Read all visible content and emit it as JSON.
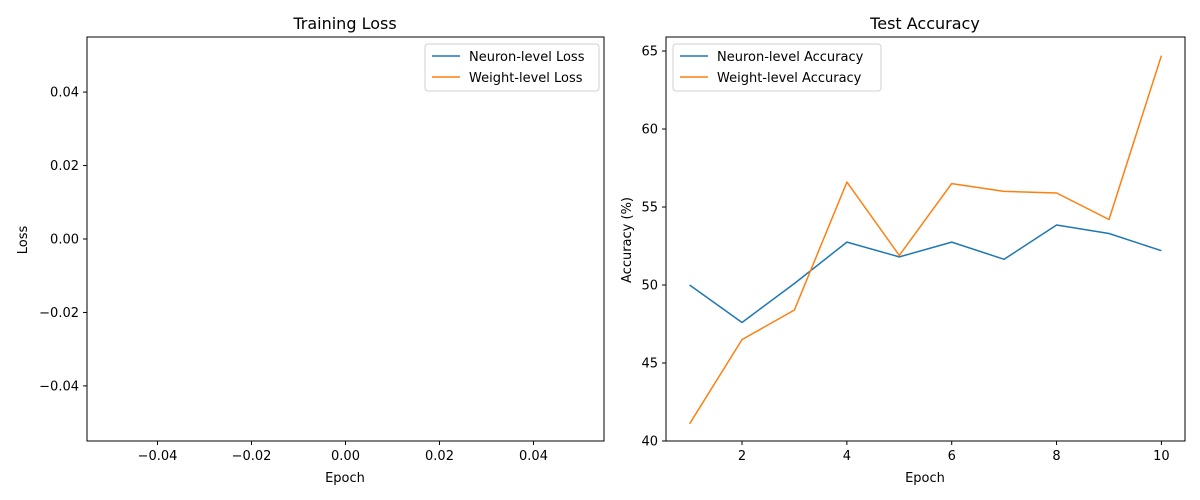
{
  "chart_data": [
    {
      "type": "line",
      "title": "Training Loss",
      "xlabel": "Epoch",
      "ylabel": "Loss",
      "xlim": [
        -0.055,
        0.055
      ],
      "ylim": [
        -0.055,
        0.055
      ],
      "xticks": [
        -0.04,
        -0.02,
        0.0,
        0.02,
        0.04
      ],
      "xtick_labels": [
        "−0.04",
        "−0.02",
        "0.00",
        "0.02",
        "0.04"
      ],
      "yticks": [
        -0.04,
        -0.02,
        0.0,
        0.02,
        0.04
      ],
      "ytick_labels": [
        "−0.04",
        "−0.02",
        "0.00",
        "0.02",
        "0.04"
      ],
      "legend_position": "top-right",
      "grid": false,
      "series": [
        {
          "name": "Neuron-level Loss",
          "color": "#1f77b4",
          "x": [],
          "values": []
        },
        {
          "name": "Weight-level Loss",
          "color": "#ff7f0e",
          "x": [],
          "values": []
        }
      ]
    },
    {
      "type": "line",
      "title": "Test Accuracy",
      "xlabel": "Epoch",
      "ylabel": "Accuracy (%)",
      "xlim": [
        0.55,
        10.45
      ],
      "ylim": [
        40.0,
        65.9
      ],
      "xticks": [
        2,
        4,
        6,
        8,
        10
      ],
      "xtick_labels": [
        "2",
        "4",
        "6",
        "8",
        "10"
      ],
      "yticks": [
        40,
        45,
        50,
        55,
        60,
        65
      ],
      "ytick_labels": [
        "40",
        "45",
        "50",
        "55",
        "60",
        "65"
      ],
      "legend_position": "top-left",
      "grid": false,
      "series": [
        {
          "name": "Neuron-level Accuracy",
          "color": "#1f77b4",
          "x": [
            1,
            2,
            3,
            4,
            5,
            6,
            7,
            8,
            9,
            10
          ],
          "values": [
            50.0,
            47.6,
            50.1,
            52.75,
            51.8,
            52.75,
            51.65,
            53.85,
            53.3,
            52.2
          ]
        },
        {
          "name": "Weight-level Accuracy",
          "color": "#ff7f0e",
          "x": [
            1,
            2,
            3,
            4,
            5,
            6,
            7,
            8,
            9,
            10
          ],
          "values": [
            41.1,
            46.5,
            48.4,
            56.6,
            51.9,
            56.5,
            56.0,
            55.9,
            54.2,
            64.7
          ]
        }
      ]
    }
  ]
}
